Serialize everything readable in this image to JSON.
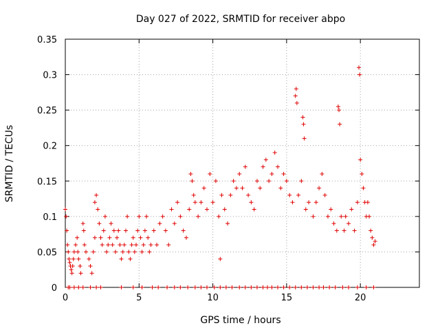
{
  "chart_data": {
    "type": "scatter",
    "title": "Day 027 of 2022, SRMTID for receiver abpo",
    "xlabel": "GPS time / hours",
    "ylabel": "SRMTID / TECUs",
    "xlim": [
      0,
      24
    ],
    "ylim": [
      0,
      0.35
    ],
    "x_ticks": [
      "0",
      "5",
      "10",
      "15",
      "20"
    ],
    "y_ticks": [
      "0",
      "0.05",
      "0.1",
      "0.15",
      "0.2",
      "0.25",
      "0.3",
      "0.35"
    ],
    "grid": true,
    "marker": "+",
    "color": "#e00000",
    "series": [
      {
        "name": "SRMTID",
        "points": [
          [
            0.0,
            0.11
          ],
          [
            0.05,
            0.1
          ],
          [
            0.1,
            0.08
          ],
          [
            0.15,
            0.06
          ],
          [
            0.2,
            0.05
          ],
          [
            0.25,
            0.04
          ],
          [
            0.3,
            0.035
          ],
          [
            0.35,
            0.03
          ],
          [
            0.4,
            0.025
          ],
          [
            0.45,
            0.02
          ],
          [
            0.5,
            0.03
          ],
          [
            0.55,
            0.04
          ],
          [
            0.6,
            0.05
          ],
          [
            0.7,
            0.06
          ],
          [
            0.8,
            0.07
          ],
          [
            0.85,
            0.05
          ],
          [
            0.9,
            0.04
          ],
          [
            1.0,
            0.03
          ],
          [
            1.05,
            0.02
          ],
          [
            1.2,
            0.09
          ],
          [
            1.25,
            0.08
          ],
          [
            1.3,
            0.06
          ],
          [
            1.4,
            0.05
          ],
          [
            1.6,
            0.04
          ],
          [
            1.7,
            0.03
          ],
          [
            1.8,
            0.02
          ],
          [
            1.9,
            0.05
          ],
          [
            2.0,
            0.07
          ],
          [
            2.0,
            0.12
          ],
          [
            2.1,
            0.13
          ],
          [
            2.2,
            0.11
          ],
          [
            2.3,
            0.09
          ],
          [
            2.4,
            0.07
          ],
          [
            2.5,
            0.06
          ],
          [
            2.6,
            0.08
          ],
          [
            2.7,
            0.1
          ],
          [
            2.8,
            0.05
          ],
          [
            2.9,
            0.06
          ],
          [
            3.0,
            0.07
          ],
          [
            3.1,
            0.09
          ],
          [
            3.2,
            0.06
          ],
          [
            3.3,
            0.08
          ],
          [
            3.4,
            0.05
          ],
          [
            3.5,
            0.07
          ],
          [
            3.6,
            0.08
          ],
          [
            3.7,
            0.06
          ],
          [
            3.8,
            0.04
          ],
          [
            3.9,
            0.05
          ],
          [
            4.0,
            0.06
          ],
          [
            4.1,
            0.08
          ],
          [
            4.2,
            0.1
          ],
          [
            4.3,
            0.05
          ],
          [
            4.4,
            0.04
          ],
          [
            4.5,
            0.06
          ],
          [
            4.6,
            0.07
          ],
          [
            4.7,
            0.05
          ],
          [
            4.8,
            0.06
          ],
          [
            4.9,
            0.08
          ],
          [
            5.0,
            0.1
          ],
          [
            5.1,
            0.07
          ],
          [
            5.2,
            0.05
          ],
          [
            5.3,
            0.06
          ],
          [
            5.4,
            0.08
          ],
          [
            5.5,
            0.1
          ],
          [
            5.6,
            0.07
          ],
          [
            5.7,
            0.05
          ],
          [
            5.8,
            0.06
          ],
          [
            6.0,
            0.08
          ],
          [
            6.2,
            0.06
          ],
          [
            6.4,
            0.09
          ],
          [
            6.6,
            0.1
          ],
          [
            6.8,
            0.08
          ],
          [
            7.0,
            0.06
          ],
          [
            7.2,
            0.11
          ],
          [
            7.4,
            0.09
          ],
          [
            7.6,
            0.12
          ],
          [
            7.8,
            0.1
          ],
          [
            8.0,
            0.08
          ],
          [
            8.2,
            0.07
          ],
          [
            8.4,
            0.11
          ],
          [
            8.5,
            0.16
          ],
          [
            8.6,
            0.15
          ],
          [
            8.7,
            0.13
          ],
          [
            8.8,
            0.12
          ],
          [
            9.0,
            0.1
          ],
          [
            9.2,
            0.12
          ],
          [
            9.4,
            0.14
          ],
          [
            9.6,
            0.11
          ],
          [
            9.8,
            0.16
          ],
          [
            10.0,
            0.12
          ],
          [
            10.2,
            0.15
          ],
          [
            10.4,
            0.1
          ],
          [
            10.5,
            0.04
          ],
          [
            10.6,
            0.13
          ],
          [
            10.8,
            0.11
          ],
          [
            11.0,
            0.09
          ],
          [
            11.2,
            0.13
          ],
          [
            11.4,
            0.15
          ],
          [
            11.6,
            0.14
          ],
          [
            11.8,
            0.16
          ],
          [
            12.0,
            0.14
          ],
          [
            12.2,
            0.17
          ],
          [
            12.4,
            0.13
          ],
          [
            12.6,
            0.12
          ],
          [
            12.8,
            0.11
          ],
          [
            13.0,
            0.15
          ],
          [
            13.2,
            0.14
          ],
          [
            13.4,
            0.17
          ],
          [
            13.6,
            0.18
          ],
          [
            13.8,
            0.15
          ],
          [
            14.0,
            0.16
          ],
          [
            14.2,
            0.19
          ],
          [
            14.4,
            0.17
          ],
          [
            14.6,
            0.14
          ],
          [
            14.8,
            0.16
          ],
          [
            15.0,
            0.15
          ],
          [
            15.2,
            0.13
          ],
          [
            15.4,
            0.12
          ],
          [
            15.6,
            0.27
          ],
          [
            15.65,
            0.28
          ],
          [
            15.7,
            0.26
          ],
          [
            15.8,
            0.13
          ],
          [
            16.0,
            0.15
          ],
          [
            16.1,
            0.24
          ],
          [
            16.15,
            0.23
          ],
          [
            16.2,
            0.21
          ],
          [
            16.3,
            0.11
          ],
          [
            16.5,
            0.12
          ],
          [
            16.8,
            0.1
          ],
          [
            17.0,
            0.12
          ],
          [
            17.2,
            0.14
          ],
          [
            17.4,
            0.16
          ],
          [
            17.6,
            0.13
          ],
          [
            17.8,
            0.1
          ],
          [
            18.0,
            0.11
          ],
          [
            18.2,
            0.09
          ],
          [
            18.4,
            0.08
          ],
          [
            18.5,
            0.255
          ],
          [
            18.55,
            0.25
          ],
          [
            18.6,
            0.23
          ],
          [
            18.7,
            0.1
          ],
          [
            18.9,
            0.08
          ],
          [
            19.0,
            0.1
          ],
          [
            19.2,
            0.09
          ],
          [
            19.4,
            0.11
          ],
          [
            19.6,
            0.08
          ],
          [
            19.8,
            0.12
          ],
          [
            19.9,
            0.31
          ],
          [
            19.95,
            0.3
          ],
          [
            20.0,
            0.18
          ],
          [
            20.1,
            0.16
          ],
          [
            20.2,
            0.14
          ],
          [
            20.3,
            0.12
          ],
          [
            20.4,
            0.1
          ],
          [
            20.5,
            0.12
          ],
          [
            20.6,
            0.1
          ],
          [
            20.7,
            0.08
          ],
          [
            20.8,
            0.07
          ],
          [
            20.9,
            0.06
          ],
          [
            21.0,
            0.065
          ],
          [
            0.2,
            0
          ],
          [
            0.3,
            0
          ],
          [
            0.6,
            0
          ],
          [
            0.9,
            0
          ],
          [
            1.2,
            0
          ],
          [
            1.7,
            0
          ],
          [
            2.1,
            0
          ],
          [
            2.4,
            0
          ],
          [
            3.8,
            0
          ],
          [
            4.6,
            0
          ],
          [
            5.2,
            0
          ],
          [
            5.9,
            0
          ],
          [
            6.3,
            0
          ],
          [
            6.9,
            0
          ],
          [
            7.4,
            0
          ],
          [
            7.8,
            0
          ],
          [
            8.3,
            0
          ],
          [
            8.8,
            0
          ],
          [
            9.2,
            0
          ],
          [
            9.6,
            0
          ],
          [
            10.1,
            0
          ],
          [
            10.5,
            0
          ],
          [
            10.9,
            0
          ],
          [
            11.3,
            0
          ],
          [
            11.8,
            0
          ],
          [
            12.2,
            0
          ],
          [
            12.6,
            0
          ],
          [
            13.0,
            0
          ],
          [
            13.4,
            0
          ],
          [
            13.7,
            0
          ],
          [
            14.0,
            0
          ],
          [
            14.4,
            0
          ],
          [
            14.8,
            0
          ],
          [
            15.2,
            0
          ],
          [
            15.6,
            0
          ],
          [
            16.0,
            0
          ],
          [
            16.4,
            0
          ],
          [
            16.8,
            0
          ],
          [
            17.2,
            0
          ],
          [
            17.5,
            0
          ],
          [
            17.9,
            0
          ],
          [
            18.3,
            0
          ],
          [
            18.8,
            0
          ],
          [
            19.2,
            0
          ],
          [
            19.8,
            0
          ],
          [
            20.4,
            0
          ],
          [
            20.9,
            0
          ]
        ]
      }
    ]
  }
}
